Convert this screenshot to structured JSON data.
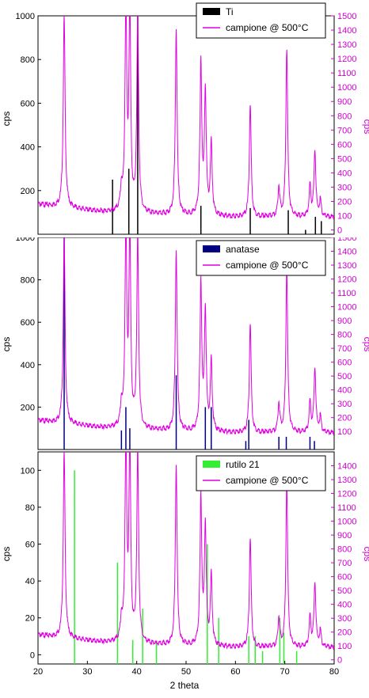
{
  "colors": {
    "scan": "#e000e0",
    "ti": "#000000",
    "anatase": "#000080",
    "rutile": "#33ee33",
    "right_axis": "#d000d0"
  },
  "chart_data": [
    {
      "type": "line",
      "ylabel": "cps",
      "y2label": "cps",
      "xlim": [
        20,
        80
      ],
      "ylim": [
        0,
        1000
      ],
      "y2lim": [
        -30,
        1500
      ],
      "yticks": [
        200,
        400,
        600,
        800,
        1000
      ],
      "y2ticks": [
        0,
        100,
        200,
        300,
        400,
        500,
        600,
        700,
        800,
        900,
        1000,
        1100,
        1200,
        1300,
        1400,
        1500
      ],
      "legend_position": "top-right",
      "series": [
        {
          "name": "Ti",
          "kind": "reference-sticks",
          "color": "#000000",
          "x": [
            35.1,
            38.4,
            40.2,
            53.0,
            63.0,
            70.7,
            74.2,
            76.2,
            77.4
          ],
          "values": [
            250,
            300,
            1000,
            130,
            120,
            110,
            20,
            80,
            60
          ]
        },
        {
          "name": "campione @ 500°C",
          "kind": "scan",
          "color": "#e000e0"
        }
      ]
    },
    {
      "type": "line",
      "ylabel": "cps",
      "y2label": "cps",
      "xlim": [
        20,
        80
      ],
      "ylim": [
        0,
        1000
      ],
      "y2lim": [
        -30,
        1500
      ],
      "yticks": [
        200,
        400,
        600,
        800,
        1000
      ],
      "y2ticks": [
        100,
        200,
        300,
        400,
        500,
        600,
        700,
        800,
        900,
        1000,
        1100,
        1200,
        1300,
        1400,
        1500
      ],
      "legend_position": "top-right",
      "series": [
        {
          "name": "anatase",
          "kind": "reference-sticks",
          "color": "#000080",
          "x": [
            25.3,
            36.9,
            37.8,
            38.6,
            48.0,
            53.9,
            55.1,
            62.1,
            62.7,
            68.8,
            70.3,
            75.1,
            76.0
          ],
          "values": [
            1000,
            90,
            200,
            100,
            350,
            200,
            200,
            40,
            140,
            60,
            60,
            60,
            40
          ]
        },
        {
          "name": "campione @ 500°C",
          "kind": "scan",
          "color": "#e000e0"
        }
      ]
    },
    {
      "type": "line",
      "ylabel": "cps",
      "y2label": "cps",
      "xlabel": "2 theta",
      "xlim": [
        20,
        80
      ],
      "xticks": [
        20,
        30,
        40,
        50,
        60,
        70,
        80
      ],
      "ylim": [
        -5,
        110
      ],
      "y2lim": [
        -30,
        1500
      ],
      "yticks": [
        0,
        20,
        40,
        60,
        80,
        100
      ],
      "y2ticks": [
        0,
        100,
        200,
        300,
        400,
        500,
        600,
        700,
        800,
        900,
        1000,
        1100,
        1200,
        1300,
        1400
      ],
      "legend_position": "top-right",
      "series": [
        {
          "name": "rutilo 21",
          "kind": "reference-sticks",
          "color": "#33ee33",
          "x": [
            27.4,
            36.1,
            39.2,
            41.2,
            44.0,
            54.3,
            56.6,
            62.7,
            64.0,
            65.5,
            69.0,
            69.8,
            72.4
          ],
          "values": [
            100,
            50,
            8,
            25,
            7,
            60,
            20,
            10,
            10,
            2,
            20,
            12,
            2
          ]
        },
        {
          "name": "campione @ 500°C",
          "kind": "scan",
          "color": "#e000e0",
          "peaks": [
            {
              "x": 25.3,
              "y": 1500
            },
            {
              "x": 36.9,
              "y": 270
            },
            {
              "x": 37.8,
              "y": 1500
            },
            {
              "x": 38.6,
              "y": 1500
            },
            {
              "x": 40.2,
              "y": 1500
            },
            {
              "x": 48.0,
              "y": 1400
            },
            {
              "x": 53.0,
              "y": 1150
            },
            {
              "x": 53.9,
              "y": 960
            },
            {
              "x": 55.1,
              "y": 600
            },
            {
              "x": 63.0,
              "y": 880
            },
            {
              "x": 68.8,
              "y": 300
            },
            {
              "x": 70.4,
              "y": 1270
            },
            {
              "x": 75.1,
              "y": 300
            },
            {
              "x": 76.1,
              "y": 560
            },
            {
              "x": 77.2,
              "y": 200
            }
          ],
          "baseline": [
            {
              "x": 20,
              "y": 180
            },
            {
              "x": 32,
              "y": 130
            },
            {
              "x": 45,
              "y": 105
            },
            {
              "x": 60,
              "y": 90
            },
            {
              "x": 80,
              "y": 90
            }
          ]
        }
      ]
    }
  ]
}
